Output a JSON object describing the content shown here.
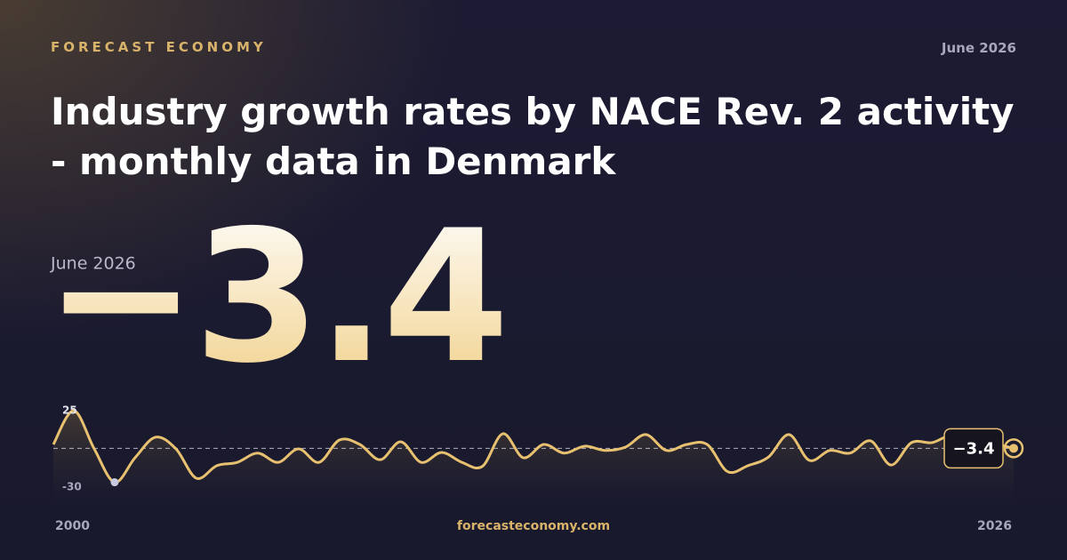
{
  "header": {
    "brand": "FORECAST ECONOMY",
    "date": "June 2026",
    "title": "Industry growth rates by NACE Rev. 2 activity - monthly data in Denmark"
  },
  "chart_data": {
    "type": "line",
    "color": "#e8c170",
    "values": [
      -0.5,
      25,
      -3.8,
      -29,
      -10.5,
      5,
      -3.8,
      -26,
      -16.5,
      -14,
      -7,
      -14,
      -3.8,
      -14,
      2.9,
      -0.5,
      -12,
      1.5,
      -14,
      -6.5,
      -14,
      -17,
      7.6,
      -10.5,
      -0.5,
      -7,
      -1.8,
      -5,
      -2.5,
      7,
      -5,
      -0.5,
      -0.5,
      -21,
      -16.5,
      -10,
      7,
      -12.5,
      -5,
      -7,
      2.2,
      -16,
      0.9,
      0.9,
      6,
      -3.8,
      -0.5,
      -3.4
    ],
    "value_labels": [
      null,
      null,
      null,
      null,
      null,
      null,
      null,
      null,
      null,
      null,
      null,
      null,
      null,
      null,
      null,
      null,
      null,
      null,
      null,
      null,
      null,
      null,
      null,
      null,
      null,
      null,
      null,
      null,
      null,
      null,
      null,
      null,
      null,
      null,
      null,
      null,
      null,
      null,
      null,
      null,
      null,
      null,
      null,
      null,
      null,
      null,
      null,
      "−3.4"
    ],
    "ylim": [
      -30,
      25
    ],
    "yticks": [
      -30,
      25
    ],
    "x_labels": [
      "2000",
      "2026"
    ]
  },
  "footer": {
    "site": "forecasteconomy.com"
  }
}
